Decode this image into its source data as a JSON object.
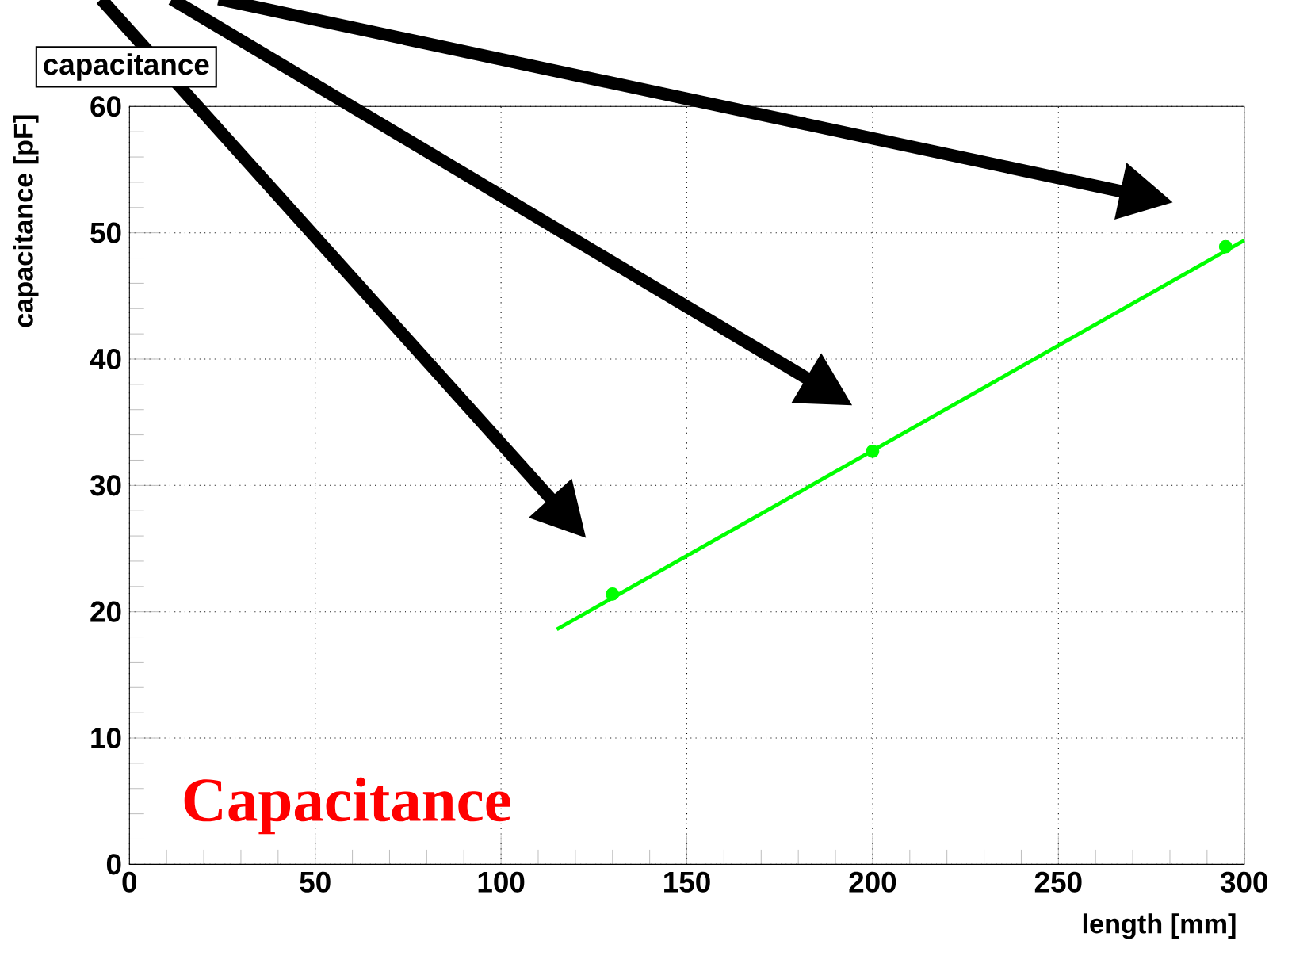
{
  "chart_data": {
    "type": "scatter",
    "title": "capacitance",
    "xlabel": "length [mm]",
    "ylabel": "capacitance [pF]",
    "annotations": [
      "Capacitance"
    ],
    "series": [
      {
        "color": "#00ff00",
        "marker": "circle",
        "x": [
          130,
          200,
          295
        ],
        "values": [
          21.4,
          32.7,
          48.9
        ]
      },
      {
        "type": "line",
        "color": "#00ff00",
        "marker": "none",
        "line_style": "solid",
        "x": [
          115,
          300
        ],
        "values": [
          18.6,
          49.4
        ]
      }
    ],
    "xlim": [
      0,
      300
    ],
    "ylim": [
      0,
      60
    ],
    "xticks": [
      0,
      50,
      100,
      150,
      200,
      250,
      300
    ],
    "yticks": [
      0,
      10,
      20,
      30,
      40,
      50,
      60
    ],
    "grid": true
  }
}
